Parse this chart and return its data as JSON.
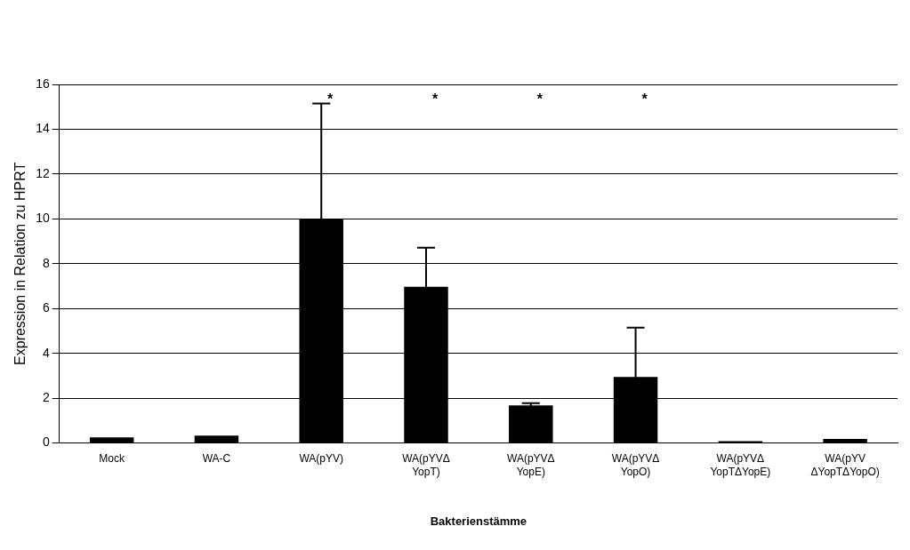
{
  "chart_data": {
    "type": "bar",
    "xlabel": "Bakterienstämme",
    "ylabel": "Expression in Relation zu HPRT",
    "categories": [
      "Mock",
      "WA-C",
      "WA(pYV)",
      "WA(pYVΔ YopT)",
      "WA(pYVΔ YopE)",
      "WA(pYVΔ YopO)",
      "WA(pYVΔ YopTΔYopE)",
      "WA(pYV ΔYopTΔYopO)"
    ],
    "values": [
      0.25,
      0.33,
      10.0,
      6.97,
      1.68,
      2.95,
      0.08,
      0.18
    ],
    "errors": [
      null,
      null,
      5.15,
      1.75,
      0.1,
      2.2,
      null,
      null
    ],
    "color": "#000000",
    "ylim": [
      0,
      16
    ],
    "yticks": [
      0,
      2,
      4,
      6,
      8,
      10,
      12,
      14,
      16
    ],
    "grid": "y",
    "legend": false,
    "annotations": [
      "*",
      "*",
      "*",
      "*"
    ]
  }
}
